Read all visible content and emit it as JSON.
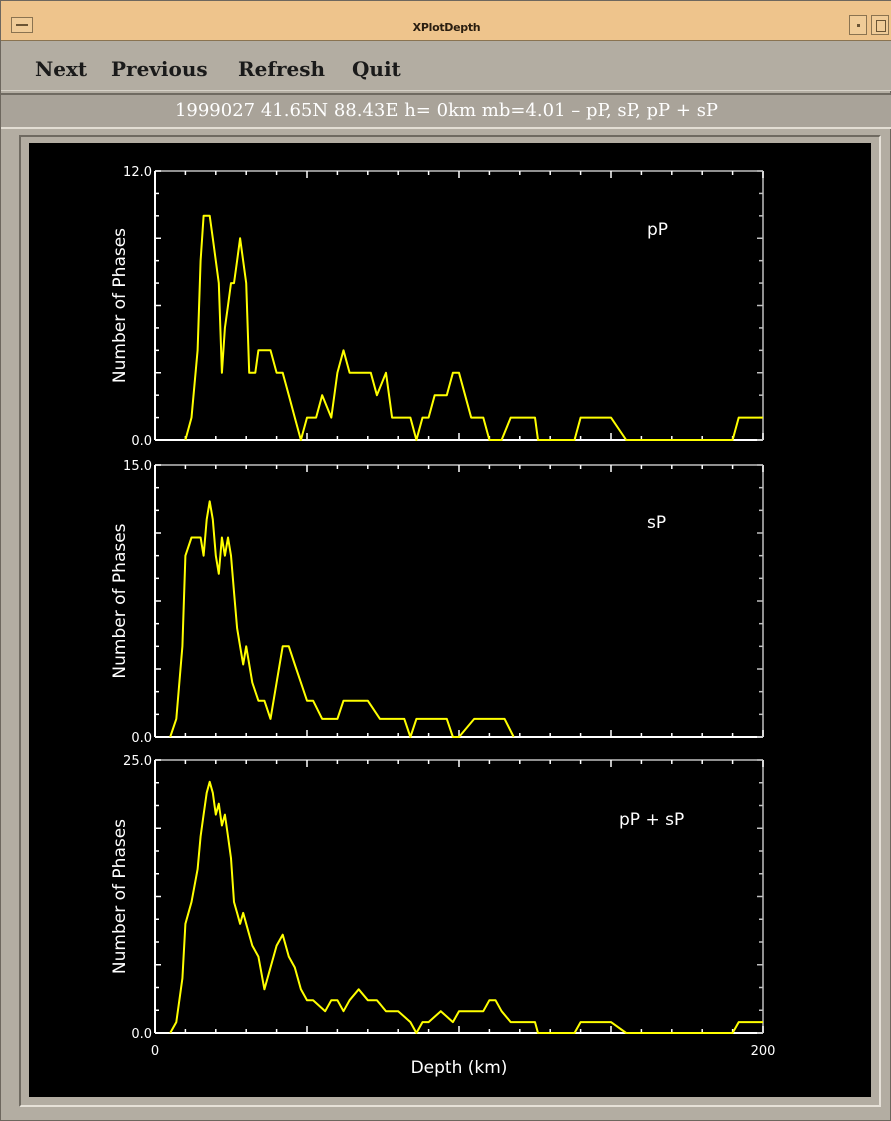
{
  "window": {
    "title": "XPlotDepth"
  },
  "menu": {
    "items": [
      "Next",
      "Previous",
      "Refresh",
      "Quit"
    ]
  },
  "event_info": "1999027  41.65N  88.43E  h= 0km  mb=4.01  –  pP, sP, pP + sP",
  "icons": {
    "window_menu": "window-menu-icon",
    "minimize": "minimize-icon",
    "maximize": "maximize-icon"
  },
  "colors": {
    "title_bar": "#eec48c",
    "plot_background": "#000000",
    "axes": "#ffffff",
    "series": "#ffff00"
  },
  "chart_data": [
    {
      "type": "line",
      "title": "",
      "annotation": "pP",
      "xlabel": "",
      "ylabel": "Number of Phases",
      "xlim": [
        0,
        200
      ],
      "ylim": [
        0,
        12
      ],
      "y_tick_labels": [
        "0.0",
        "12.0"
      ],
      "x_tick_labels": [],
      "grid": false,
      "series": [
        {
          "x": [
            10,
            12,
            14,
            15,
            16,
            17,
            18,
            19,
            20,
            21,
            22,
            23,
            24,
            25,
            26,
            27,
            28,
            30,
            31,
            32,
            33,
            34,
            36,
            38,
            40,
            42,
            44,
            46,
            48,
            50,
            51,
            53,
            55,
            58,
            60,
            62,
            64,
            67,
            69,
            71,
            73,
            76,
            78,
            80,
            82,
            84,
            86,
            88,
            90,
            92,
            94,
            96,
            98,
            100,
            102,
            104,
            106,
            108,
            110,
            112,
            114,
            117,
            120,
            125,
            126,
            130,
            138,
            140,
            150,
            155,
            160,
            165,
            175,
            190,
            192,
            200
          ],
          "y": [
            0,
            1,
            4,
            8,
            10,
            10,
            10,
            9,
            8,
            7,
            3,
            5,
            6,
            7,
            7,
            8,
            9,
            7,
            3,
            3,
            3,
            4,
            4,
            4,
            3,
            3,
            2,
            1,
            0,
            1,
            1,
            1,
            2,
            1,
            3,
            4,
            3,
            3,
            3,
            3,
            2,
            3,
            1,
            1,
            1,
            1,
            0,
            1,
            1,
            2,
            2,
            2,
            3,
            3,
            2,
            1,
            1,
            1,
            0,
            0,
            0,
            1,
            1,
            1,
            0,
            0,
            0,
            1,
            1,
            0,
            0,
            0,
            0,
            0,
            1,
            1
          ]
        }
      ]
    },
    {
      "type": "line",
      "title": "",
      "annotation": "sP",
      "xlabel": "",
      "ylabel": "Number of Phases",
      "xlim": [
        0,
        200
      ],
      "ylim": [
        0,
        15
      ],
      "y_tick_labels": [
        "0.0",
        "15.0"
      ],
      "x_tick_labels": [],
      "grid": false,
      "series": [
        {
          "x": [
            5,
            7,
            9,
            10,
            12,
            14,
            15,
            16,
            17,
            18,
            19,
            20,
            21,
            22,
            23,
            24,
            25,
            26,
            27,
            28,
            29,
            30,
            32,
            34,
            36,
            38,
            40,
            42,
            44,
            46,
            48,
            50,
            52,
            55,
            58,
            60,
            62,
            66,
            70,
            74,
            78,
            82,
            84,
            86,
            88,
            90,
            96,
            98,
            100,
            105,
            110,
            115,
            118
          ],
          "y": [
            0,
            1,
            5,
            10,
            11,
            11,
            11,
            10,
            12,
            13,
            12,
            10,
            9,
            11,
            10,
            11,
            10,
            8,
            6,
            5,
            4,
            5,
            3,
            2,
            2,
            1,
            3,
            5,
            5,
            4,
            3,
            2,
            2,
            1,
            1,
            1,
            2,
            2,
            2,
            1,
            1,
            1,
            0,
            1,
            1,
            1,
            1,
            0,
            0,
            1,
            1,
            1,
            0
          ]
        }
      ]
    },
    {
      "type": "line",
      "title": "",
      "annotation": "pP + sP",
      "xlabel": "Depth (km)",
      "ylabel": "Number of Phases",
      "xlim": [
        0,
        200
      ],
      "ylim": [
        0,
        25
      ],
      "y_tick_labels": [
        "0.0",
        "25.0"
      ],
      "x_tick_labels": [
        "0",
        "200"
      ],
      "grid": false,
      "series": [
        {
          "x": [
            5,
            7,
            9,
            10,
            12,
            14,
            15,
            16,
            17,
            18,
            19,
            20,
            21,
            22,
            23,
            24,
            25,
            26,
            27,
            28,
            29,
            30,
            32,
            34,
            36,
            38,
            40,
            42,
            44,
            46,
            48,
            50,
            52,
            56,
            58,
            60,
            62,
            64,
            67,
            70,
            73,
            76,
            80,
            84,
            86,
            88,
            90,
            94,
            98,
            100,
            104,
            108,
            110,
            112,
            114,
            117,
            120,
            125,
            126,
            130,
            138,
            140,
            150,
            155,
            160,
            165,
            175,
            190,
            192,
            200
          ],
          "y": [
            0,
            1,
            5,
            10,
            12,
            15,
            18,
            20,
            22,
            23,
            22,
            20,
            21,
            19,
            20,
            18,
            16,
            12,
            11,
            10,
            11,
            10,
            8,
            7,
            4,
            6,
            8,
            9,
            7,
            6,
            4,
            3,
            3,
            2,
            3,
            3,
            2,
            3,
            4,
            3,
            3,
            2,
            2,
            1,
            0,
            1,
            1,
            2,
            1,
            2,
            2,
            2,
            3,
            3,
            2,
            1,
            1,
            1,
            0,
            0,
            0,
            1,
            1,
            0,
            0,
            0,
            0,
            0,
            1,
            1
          ]
        }
      ]
    }
  ]
}
